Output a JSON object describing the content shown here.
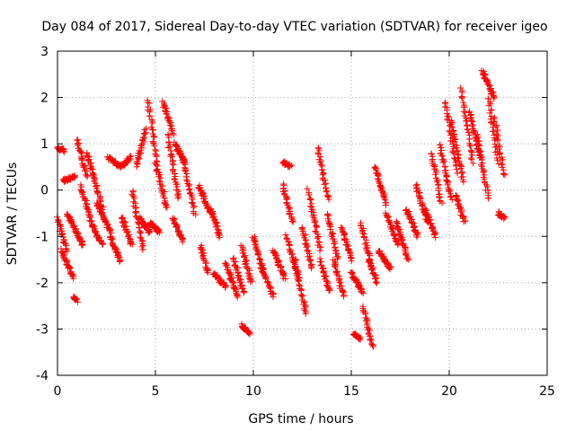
{
  "chart_data": {
    "type": "scatter",
    "title": "Day 084 of 2017, Sidereal Day-to-day VTEC variation (SDTVAR) for receiver igeo",
    "xlabel": "GPS time / hours",
    "ylabel": "SDTVAR / TECUs",
    "xlim": [
      0,
      25
    ],
    "ylim": [
      -4,
      3
    ],
    "xticks": [
      0,
      5,
      10,
      15,
      20,
      25
    ],
    "yticks": [
      -4,
      -3,
      -2,
      -1,
      0,
      1,
      2,
      3
    ],
    "grid": true,
    "marker": "+",
    "marker_color": "#ff0000",
    "series": [
      {
        "name": "SDTVAR",
        "tracks": [
          {
            "x0": 0.0,
            "x1": 0.35,
            "y0": 0.9,
            "y1": 0.85
          },
          {
            "x0": 0.0,
            "x1": 0.45,
            "y0": -0.6,
            "y1": -1.3
          },
          {
            "x0": 0.2,
            "x1": 0.8,
            "y0": -1.3,
            "y1": -1.9
          },
          {
            "x0": 0.3,
            "x1": 0.9,
            "y0": 0.2,
            "y1": 0.3
          },
          {
            "x0": 0.5,
            "x1": 1.3,
            "y0": -0.5,
            "y1": -1.2
          },
          {
            "x0": 0.8,
            "x1": 1.0,
            "y0": -2.3,
            "y1": -2.4
          },
          {
            "x0": 1.0,
            "x1": 1.5,
            "y0": 1.1,
            "y1": 0.3
          },
          {
            "x0": 1.2,
            "x1": 1.8,
            "y0": 0.1,
            "y1": -0.8
          },
          {
            "x0": 1.5,
            "x1": 2.3,
            "y0": 0.8,
            "y1": -0.4
          },
          {
            "x0": 1.8,
            "x1": 2.3,
            "y0": -0.8,
            "y1": -1.2
          },
          {
            "x0": 2.0,
            "x1": 2.7,
            "y0": -0.3,
            "y1": -0.9
          },
          {
            "x0": 2.6,
            "x1": 3.2,
            "y0": 0.7,
            "y1": 0.5
          },
          {
            "x0": 2.7,
            "x1": 3.2,
            "y0": -1.0,
            "y1": -1.55
          },
          {
            "x0": 3.2,
            "x1": 3.7,
            "y0": 0.5,
            "y1": 0.7
          },
          {
            "x0": 3.3,
            "x1": 3.8,
            "y0": -0.6,
            "y1": -1.2
          },
          {
            "x0": 3.8,
            "x1": 4.4,
            "y0": 0.0,
            "y1": -1.3
          },
          {
            "x0": 4.0,
            "x1": 4.5,
            "y0": 0.5,
            "y1": 1.3
          },
          {
            "x0": 4.2,
            "x1": 4.7,
            "y0": -0.6,
            "y1": -0.9
          },
          {
            "x0": 4.6,
            "x1": 5.1,
            "y0": 1.95,
            "y1": 0.6
          },
          {
            "x0": 4.7,
            "x1": 5.2,
            "y0": -0.7,
            "y1": -0.9
          },
          {
            "x0": 5.0,
            "x1": 5.6,
            "y0": 0.6,
            "y1": -0.4
          },
          {
            "x0": 5.4,
            "x1": 5.9,
            "y0": 1.9,
            "y1": 1.2
          },
          {
            "x0": 5.6,
            "x1": 6.2,
            "y0": 1.2,
            "y1": -0.2
          },
          {
            "x0": 5.9,
            "x1": 6.4,
            "y0": -0.6,
            "y1": -1.1
          },
          {
            "x0": 6.0,
            "x1": 6.5,
            "y0": 1.0,
            "y1": 0.6
          },
          {
            "x0": 6.4,
            "x1": 7.0,
            "y0": 0.7,
            "y1": -0.5
          },
          {
            "x0": 7.2,
            "x1": 7.8,
            "y0": 0.1,
            "y1": -0.5
          },
          {
            "x0": 7.3,
            "x1": 7.7,
            "y0": -1.2,
            "y1": -1.8
          },
          {
            "x0": 7.8,
            "x1": 8.3,
            "y0": -0.4,
            "y1": -1.0
          },
          {
            "x0": 8.0,
            "x1": 8.6,
            "y0": -1.8,
            "y1": -2.1
          },
          {
            "x0": 8.6,
            "x1": 9.2,
            "y0": -1.6,
            "y1": -2.3
          },
          {
            "x0": 9.0,
            "x1": 9.5,
            "y0": -1.5,
            "y1": -2.2
          },
          {
            "x0": 9.4,
            "x1": 9.9,
            "y0": -1.2,
            "y1": -2.0
          },
          {
            "x0": 9.4,
            "x1": 9.8,
            "y0": -2.9,
            "y1": -3.1
          },
          {
            "x0": 10.0,
            "x1": 10.5,
            "y0": -1.0,
            "y1": -1.8
          },
          {
            "x0": 10.4,
            "x1": 11.0,
            "y0": -1.6,
            "y1": -2.3
          },
          {
            "x0": 11.0,
            "x1": 11.6,
            "y0": -1.3,
            "y1": -1.9
          },
          {
            "x0": 11.5,
            "x1": 11.9,
            "y0": 0.6,
            "y1": 0.5
          },
          {
            "x0": 11.5,
            "x1": 12.0,
            "y0": 0.1,
            "y1": -0.7
          },
          {
            "x0": 11.7,
            "x1": 12.3,
            "y0": -1.0,
            "y1": -1.9
          },
          {
            "x0": 12.1,
            "x1": 12.7,
            "y0": -1.5,
            "y1": -2.7
          },
          {
            "x0": 12.5,
            "x1": 13.0,
            "y0": -0.8,
            "y1": -1.7
          },
          {
            "x0": 12.8,
            "x1": 13.4,
            "y0": 0.0,
            "y1": -1.3
          },
          {
            "x0": 13.3,
            "x1": 13.8,
            "y0": 0.9,
            "y1": -0.2
          },
          {
            "x0": 13.4,
            "x1": 13.9,
            "y0": -1.5,
            "y1": -2.2
          },
          {
            "x0": 13.8,
            "x1": 14.3,
            "y0": -0.5,
            "y1": -1.5
          },
          {
            "x0": 14.1,
            "x1": 14.6,
            "y0": -1.5,
            "y1": -2.3
          },
          {
            "x0": 14.5,
            "x1": 15.0,
            "y0": -0.8,
            "y1": -1.5
          },
          {
            "x0": 15.0,
            "x1": 15.6,
            "y0": -1.8,
            "y1": -2.2
          },
          {
            "x0": 15.1,
            "x1": 15.5,
            "y0": -3.1,
            "y1": -3.2
          },
          {
            "x0": 15.5,
            "x1": 16.0,
            "y0": -0.7,
            "y1": -1.6
          },
          {
            "x0": 15.6,
            "x1": 16.1,
            "y0": -2.5,
            "y1": -3.4
          },
          {
            "x0": 15.9,
            "x1": 16.3,
            "y0": -1.5,
            "y1": -2.0
          },
          {
            "x0": 16.2,
            "x1": 16.8,
            "y0": 0.5,
            "y1": -0.3
          },
          {
            "x0": 16.4,
            "x1": 17.0,
            "y0": -1.3,
            "y1": -1.7
          },
          {
            "x0": 16.8,
            "x1": 17.4,
            "y0": -0.5,
            "y1": -1.2
          },
          {
            "x0": 17.3,
            "x1": 17.9,
            "y0": -0.7,
            "y1": -1.5
          },
          {
            "x0": 17.8,
            "x1": 18.4,
            "y0": -0.4,
            "y1": -1.0
          },
          {
            "x0": 18.3,
            "x1": 18.9,
            "y0": 0.1,
            "y1": -0.7
          },
          {
            "x0": 18.8,
            "x1": 19.3,
            "y0": -0.4,
            "y1": -1.0
          },
          {
            "x0": 19.1,
            "x1": 19.6,
            "y0": 0.8,
            "y1": -0.3
          },
          {
            "x0": 19.5,
            "x1": 20.1,
            "y0": 1.0,
            "y1": -0.2
          },
          {
            "x0": 19.8,
            "x1": 20.4,
            "y0": 1.9,
            "y1": 0.4
          },
          {
            "x0": 20.1,
            "x1": 20.7,
            "y0": 1.5,
            "y1": 0.2
          },
          {
            "x0": 20.3,
            "x1": 20.8,
            "y0": -0.1,
            "y1": -0.7
          },
          {
            "x0": 20.6,
            "x1": 21.2,
            "y0": 2.2,
            "y1": 0.6
          },
          {
            "x0": 21.0,
            "x1": 21.6,
            "y0": 1.7,
            "y1": 0.7
          },
          {
            "x0": 21.4,
            "x1": 22.0,
            "y0": 1.2,
            "y1": -0.2
          },
          {
            "x0": 21.7,
            "x1": 22.3,
            "y0": 2.55,
            "y1": 2.0
          },
          {
            "x0": 22.0,
            "x1": 22.5,
            "y0": 2.0,
            "y1": 0.6
          },
          {
            "x0": 22.3,
            "x1": 22.8,
            "y0": 1.6,
            "y1": 0.3
          },
          {
            "x0": 22.5,
            "x1": 22.8,
            "y0": -0.5,
            "y1": -0.6
          }
        ]
      }
    ]
  }
}
